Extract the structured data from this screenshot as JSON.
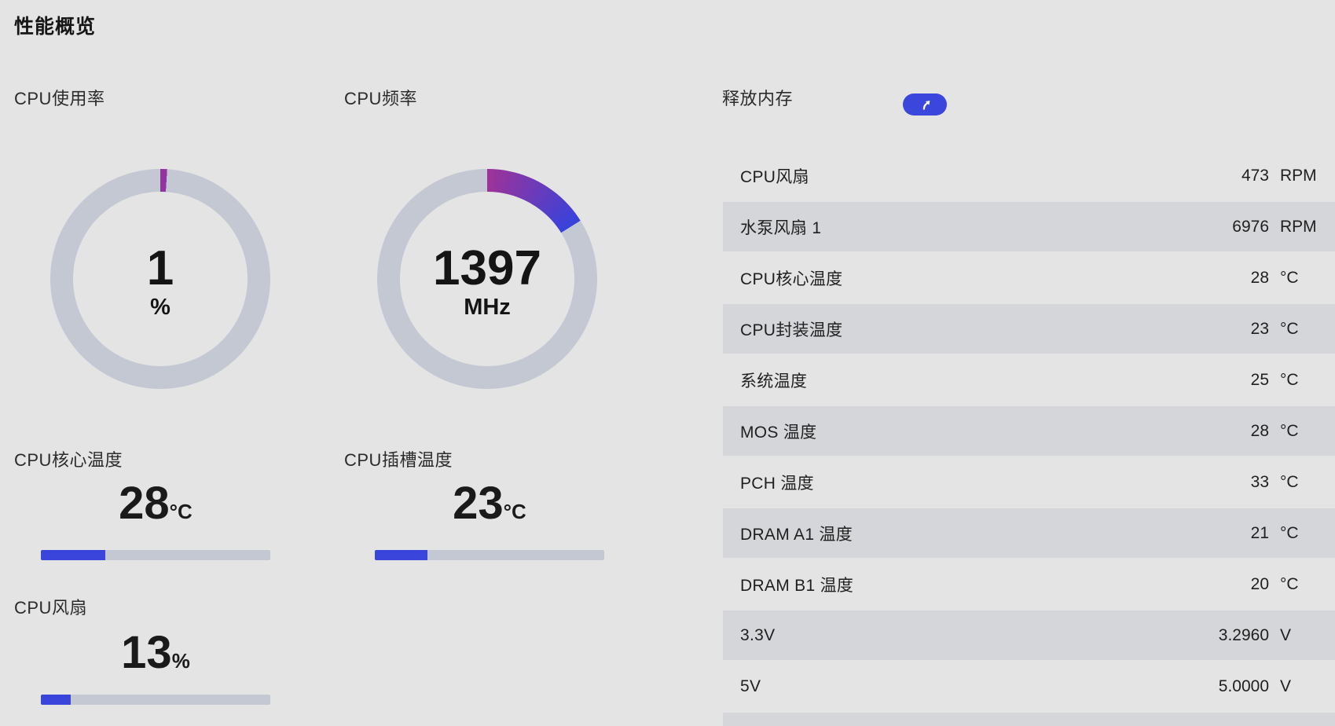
{
  "page": {
    "title": "性能概览",
    "background": "#e4e4e5"
  },
  "colors": {
    "accent_blue": "#3a45dc",
    "purple": "#9e3397",
    "ring_track": "#c4c8d3",
    "row_alt": "#d5d6da"
  },
  "gauges": [
    {
      "label": "CPU使用率",
      "value": "1",
      "unit": "%",
      "arc_deg": 3.6,
      "arc_start_color": "#8e35a0",
      "arc_end_color": "#9333a2",
      "track_color": "#c4c8d3"
    },
    {
      "label": "CPU频率",
      "value": "1397",
      "unit": "MHz",
      "arc_deg": 58,
      "arc_start_color": "#9e3397",
      "arc_end_color": "#3742dc",
      "track_color": "#c4c8d3"
    }
  ],
  "memory": {
    "label": "释放内存",
    "button_icon": "boost-arrow-icon"
  },
  "sensors": {
    "rows": [
      {
        "label": "CPU风扇",
        "value": "473",
        "unit": "RPM"
      },
      {
        "label": "水泵风扇 1",
        "value": "6976",
        "unit": "RPM"
      },
      {
        "label": "CPU核心温度",
        "value": "28",
        "unit": "°C"
      },
      {
        "label": "CPU封装温度",
        "value": "23",
        "unit": "°C"
      },
      {
        "label": "系统温度",
        "value": "25",
        "unit": "°C"
      },
      {
        "label": "MOS 温度",
        "value": "28",
        "unit": "°C"
      },
      {
        "label": "PCH 温度",
        "value": "33",
        "unit": "°C"
      },
      {
        "label": "DRAM A1 温度",
        "value": "21",
        "unit": "°C"
      },
      {
        "label": "DRAM B1 温度",
        "value": "20",
        "unit": "°C"
      },
      {
        "label": "3.3V",
        "value": "3.2960",
        "unit": "V"
      },
      {
        "label": "5V",
        "value": "5.0000",
        "unit": "V"
      }
    ]
  },
  "stats": [
    {
      "label": "CPU核心温度",
      "value": "28",
      "unit": "°C",
      "percent": 28
    },
    {
      "label": "CPU插槽温度",
      "value": "23",
      "unit": "°C",
      "percent": 23
    },
    {
      "label": "CPU风扇",
      "value": "13",
      "unit": "%",
      "percent": 13
    }
  ]
}
